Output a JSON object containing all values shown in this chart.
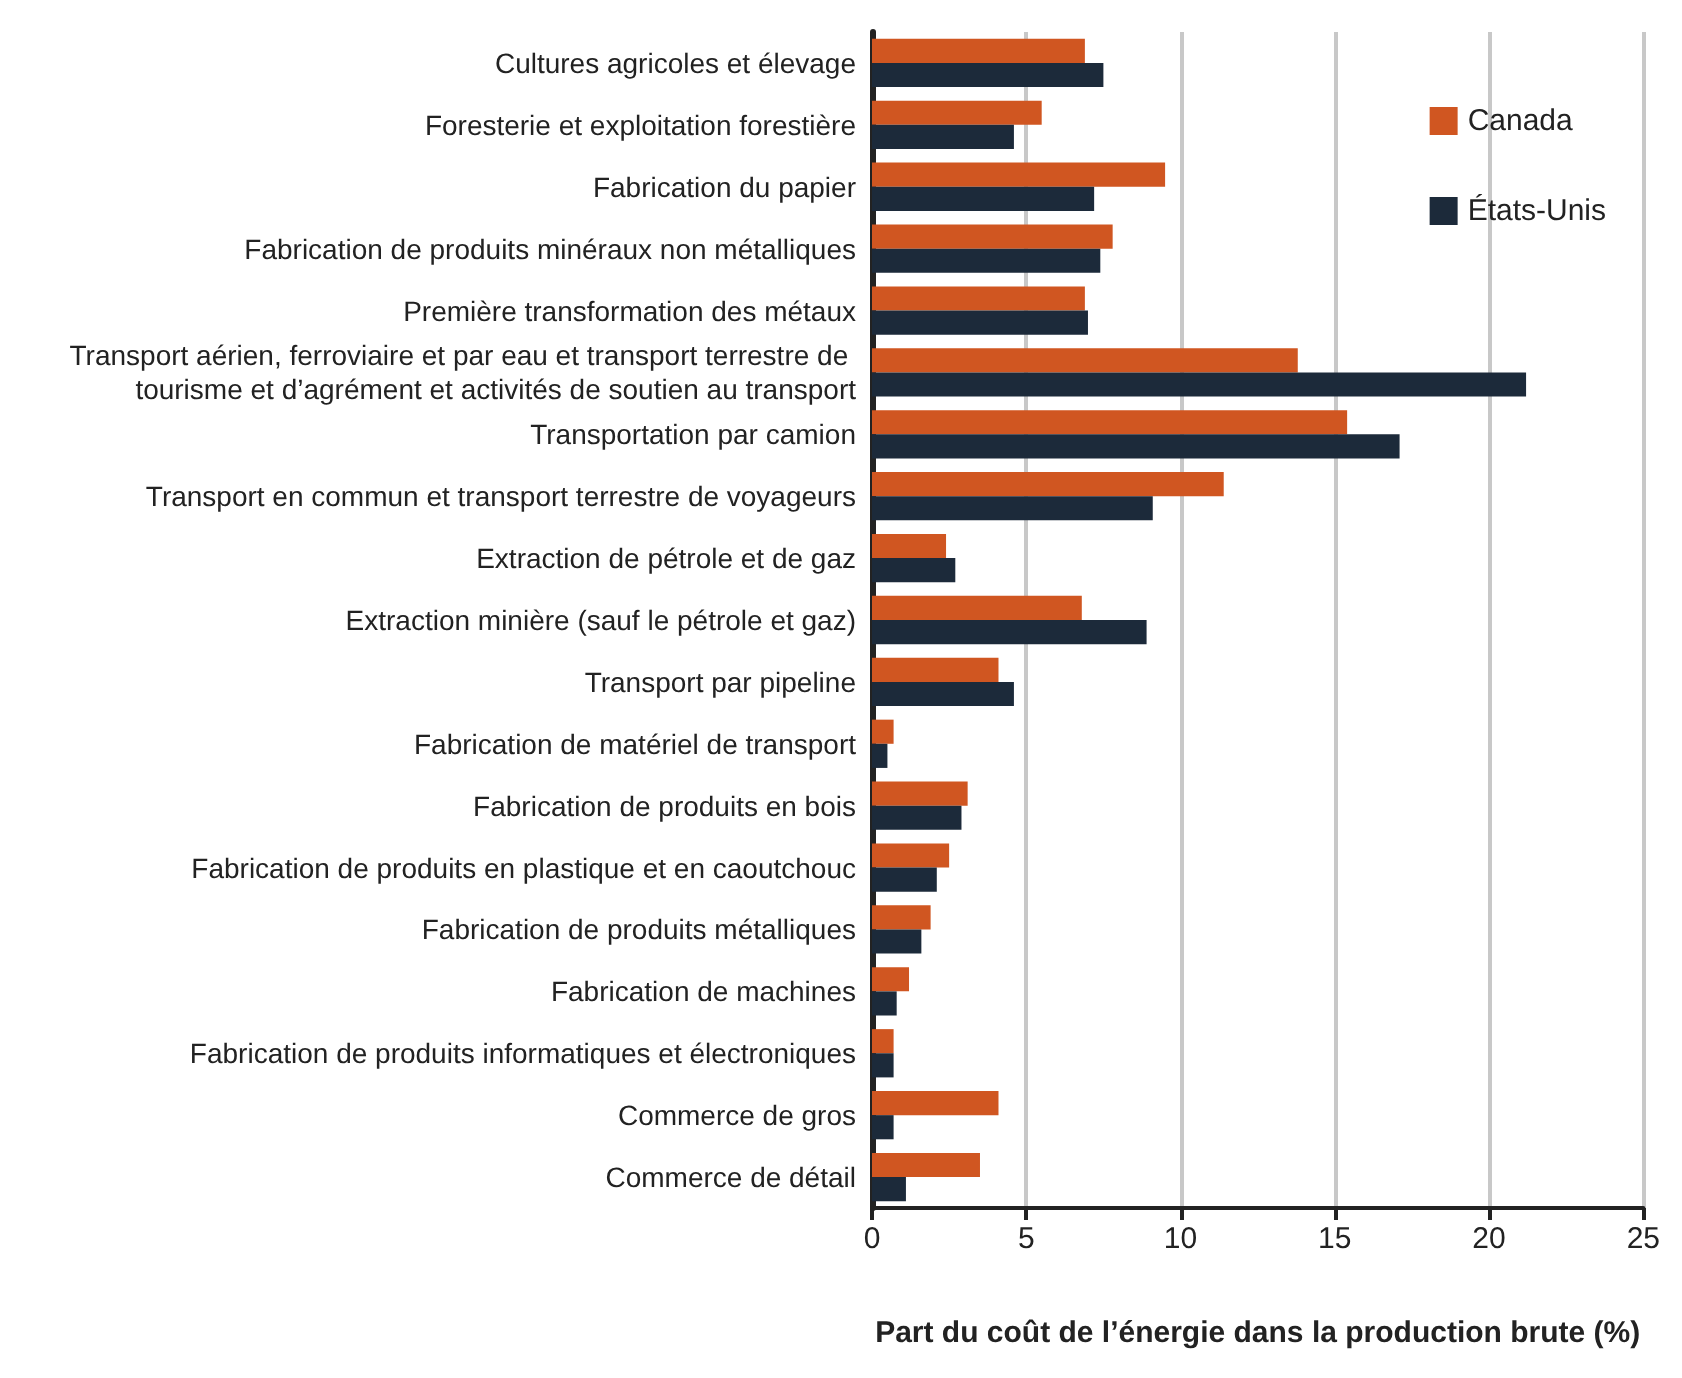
{
  "chart_data": {
    "type": "bar",
    "orientation": "horizontal",
    "xlabel": "Part du coût de l’énergie dans la production brute (%)",
    "categories": [
      "Cultures agricoles et élevage",
      "Foresterie et exploitation forestière",
      "Fabrication du papier",
      "Fabrication de produits minéraux non métalliques",
      "Première transformation des métaux",
      "Transport aérien, ferroviaire et par eau et transport terrestre de tourisme et d’agrément et activités de soutien au transport",
      "Transportation par camion",
      "Transport en commun et transport terrestre de voyageurs",
      "Extraction de pétrole et de gaz",
      "Extraction minière (sauf le pétrole et gaz)",
      "Transport par pipeline",
      "Fabrication de matériel de transport",
      "Fabrication de produits en bois",
      "Fabrication de produits en plastique et en caoutchouc",
      "Fabrication de produits métalliques",
      "Fabrication de machines",
      "Fabrication de produits informatiques et électroniques",
      "Commerce de gros",
      "Commerce de détail"
    ],
    "series": [
      {
        "name": "Canada",
        "color": "#d05621",
        "values": [
          6.9,
          5.5,
          9.5,
          7.8,
          6.9,
          13.8,
          15.4,
          11.4,
          2.4,
          6.8,
          4.1,
          0.7,
          3.1,
          2.5,
          1.9,
          1.2,
          0.7,
          4.1,
          3.5
        ]
      },
      {
        "name": "États-Unis",
        "color": "#1c2a3a",
        "values": [
          7.5,
          4.6,
          7.2,
          7.4,
          7.0,
          21.2,
          17.1,
          9.1,
          2.7,
          8.9,
          4.6,
          0.5,
          2.9,
          2.1,
          1.6,
          0.8,
          0.7,
          0.7,
          1.1
        ]
      }
    ],
    "xlim": [
      0,
      25
    ],
    "xticks": [
      0,
      5,
      10,
      15,
      20,
      25
    ],
    "grid": "x",
    "legend": "top right"
  }
}
